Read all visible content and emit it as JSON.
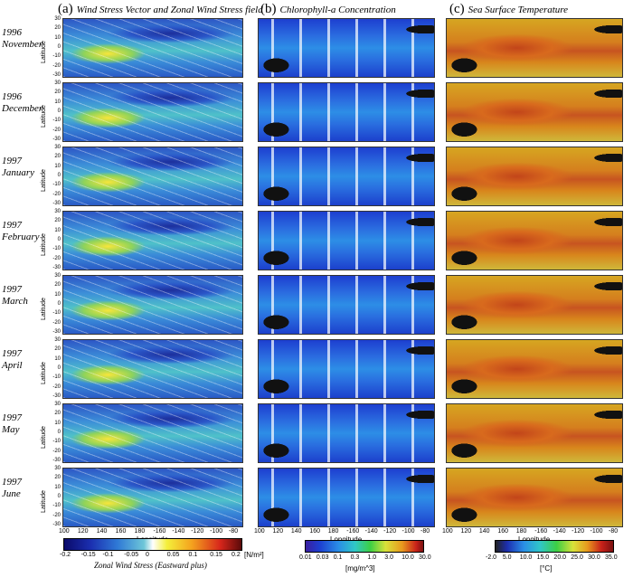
{
  "headers": {
    "a": {
      "tag": "(a)",
      "title": "Wind Stress Vector and Zonal Wind Stress field"
    },
    "b": {
      "tag": "(b)",
      "title": "Chlorophyll-a Concentration"
    },
    "c": {
      "tag": "(c)",
      "title": "Sea Surface Temperature"
    }
  },
  "rows": [
    {
      "year": "1996",
      "month": "November"
    },
    {
      "year": "1996",
      "month": "December"
    },
    {
      "year": "1997",
      "month": "January"
    },
    {
      "year": "1997",
      "month": "February"
    },
    {
      "year": "1997",
      "month": "March"
    },
    {
      "year": "1997",
      "month": "April"
    },
    {
      "year": "1997",
      "month": "May"
    },
    {
      "year": "1997",
      "month": "June"
    }
  ],
  "lat_ticks": [
    "30",
    "20",
    "10",
    "0",
    "-10",
    "-20",
    "-30"
  ],
  "lat_label": "Latitude",
  "lon_ticks": [
    "100",
    "120",
    "140",
    "160",
    "180",
    "-160",
    "-140",
    "-120",
    "-100",
    "-80"
  ],
  "lon_label": "Longitude",
  "colorbars": {
    "wind": {
      "ticks": [
        "-0.2",
        "-0.15",
        "-0.1",
        "-0.05",
        "0",
        "0.05",
        "0.1",
        "0.15",
        "0.2"
      ],
      "unit": "[N/m²]",
      "label": "Zonal Wind Stress (Eastward plus)"
    },
    "chl": {
      "ticks": [
        "0.01",
        "0.03",
        "0.1",
        "0.3",
        "1.0",
        "3.0",
        "10.0",
        "30.0"
      ],
      "unit": "[mg/m^3]"
    },
    "sst": {
      "ticks": [
        "-2.0",
        "5.0",
        "10.0",
        "15.0",
        "20.0",
        "25.0",
        "30.0",
        "35.0"
      ],
      "unit": "[°C]"
    }
  }
}
